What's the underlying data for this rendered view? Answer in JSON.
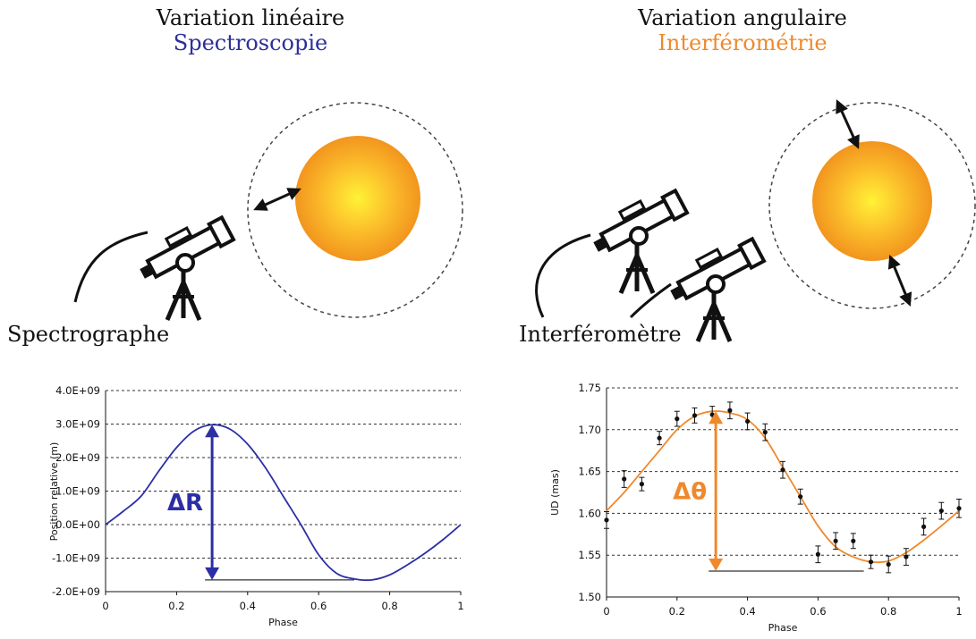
{
  "left": {
    "title": "Variation linéaire",
    "subtitle": "Spectroscopie",
    "subtitle_color": "#2c2f9a",
    "instrument_label": "Spectrographe",
    "icon": "telescope-icon"
  },
  "right": {
    "title": "Variation angulaire",
    "subtitle": "Interférométrie",
    "subtitle_color": "#f0892b",
    "instrument_label": "Interféromètre",
    "icon": "telescope-pair-icon"
  },
  "chart_data": [
    {
      "type": "line",
      "xlabel": "Phase",
      "ylabel": "Position relative (m)",
      "xlim": [
        0,
        1
      ],
      "ylim": [
        -2000000000.0,
        4000000000.0
      ],
      "xticks": [
        "0",
        "0.2",
        "0.4",
        "0.6",
        "0.8",
        "1"
      ],
      "yticks": [
        "4.0E+09",
        "3.0E+09",
        "2.0E+09",
        "1.0E+09",
        "0.0E+00",
        "-1.0E+09",
        "-2.0E+09"
      ],
      "grid": "horizontal-dashed",
      "series": [
        {
          "color": "#2c2fa3",
          "x": [
            0,
            0.05,
            0.1,
            0.15,
            0.2,
            0.25,
            0.3,
            0.35,
            0.4,
            0.45,
            0.5,
            0.55,
            0.6,
            0.65,
            0.7,
            0.75,
            0.8,
            0.85,
            0.9,
            0.95,
            1.0
          ],
          "y": [
            0.0,
            400000000.0,
            850000000.0,
            1600000000.0,
            2300000000.0,
            2800000000.0,
            2980000000.0,
            2850000000.0,
            2400000000.0,
            1700000000.0,
            850000000.0,
            0.0,
            -900000000.0,
            -1450000000.0,
            -1620000000.0,
            -1650000000.0,
            -1500000000.0,
            -1200000000.0,
            -850000000.0,
            -450000000.0,
            0.0
          ]
        }
      ],
      "annotation": {
        "label": "ΔR",
        "color": "#2c2fa3",
        "x": 0.3,
        "from": 2980000000.0,
        "to": -1650000000.0,
        "baseline_x": [
          0.28,
          0.7
        ]
      }
    },
    {
      "type": "line",
      "xlabel": "Phase",
      "ylabel": "UD (mas)",
      "xlim": [
        0,
        1
      ],
      "ylim": [
        1.5,
        1.75
      ],
      "xticks": [
        "0",
        "0.2",
        "0.4",
        "0.6",
        "0.8",
        "1"
      ],
      "yticks": [
        "1.75",
        "1.70",
        "1.65",
        "1.60",
        "1.55",
        "1.50"
      ],
      "grid": "horizontal-dashed",
      "series": [
        {
          "color": "#f0892b",
          "x": [
            0,
            0.05,
            0.1,
            0.15,
            0.2,
            0.25,
            0.3,
            0.35,
            0.4,
            0.45,
            0.5,
            0.55,
            0.6,
            0.65,
            0.7,
            0.75,
            0.8,
            0.85,
            0.9,
            0.95,
            1.0
          ],
          "y": [
            1.603,
            1.625,
            1.65,
            1.675,
            1.7,
            1.716,
            1.722,
            1.72,
            1.712,
            1.69,
            1.655,
            1.62,
            1.585,
            1.56,
            1.548,
            1.542,
            1.543,
            1.553,
            1.568,
            1.585,
            1.603
          ]
        }
      ],
      "points": {
        "x": [
          0,
          0.05,
          0.1,
          0.15,
          0.2,
          0.25,
          0.3,
          0.35,
          0.4,
          0.45,
          0.5,
          0.55,
          0.6,
          0.65,
          0.7,
          0.75,
          0.8,
          0.85,
          0.9,
          0.95,
          1.0
        ],
        "y": [
          1.592,
          1.641,
          1.635,
          1.69,
          1.713,
          1.717,
          1.718,
          1.723,
          1.71,
          1.697,
          1.652,
          1.62,
          1.551,
          1.567,
          1.567,
          1.542,
          1.539,
          1.548,
          1.584,
          1.603,
          1.606
        ],
        "err": [
          0.01,
          0.01,
          0.008,
          0.008,
          0.009,
          0.009,
          0.01,
          0.01,
          0.01,
          0.01,
          0.01,
          0.009,
          0.01,
          0.01,
          0.009,
          0.008,
          0.01,
          0.01,
          0.01,
          0.01,
          0.011
        ]
      },
      "annotation": {
        "label": "Δθ",
        "color": "#f0892b",
        "x": 0.31,
        "from": 1.722,
        "to": 1.531,
        "baseline_x": [
          0.29,
          0.73
        ]
      }
    }
  ]
}
